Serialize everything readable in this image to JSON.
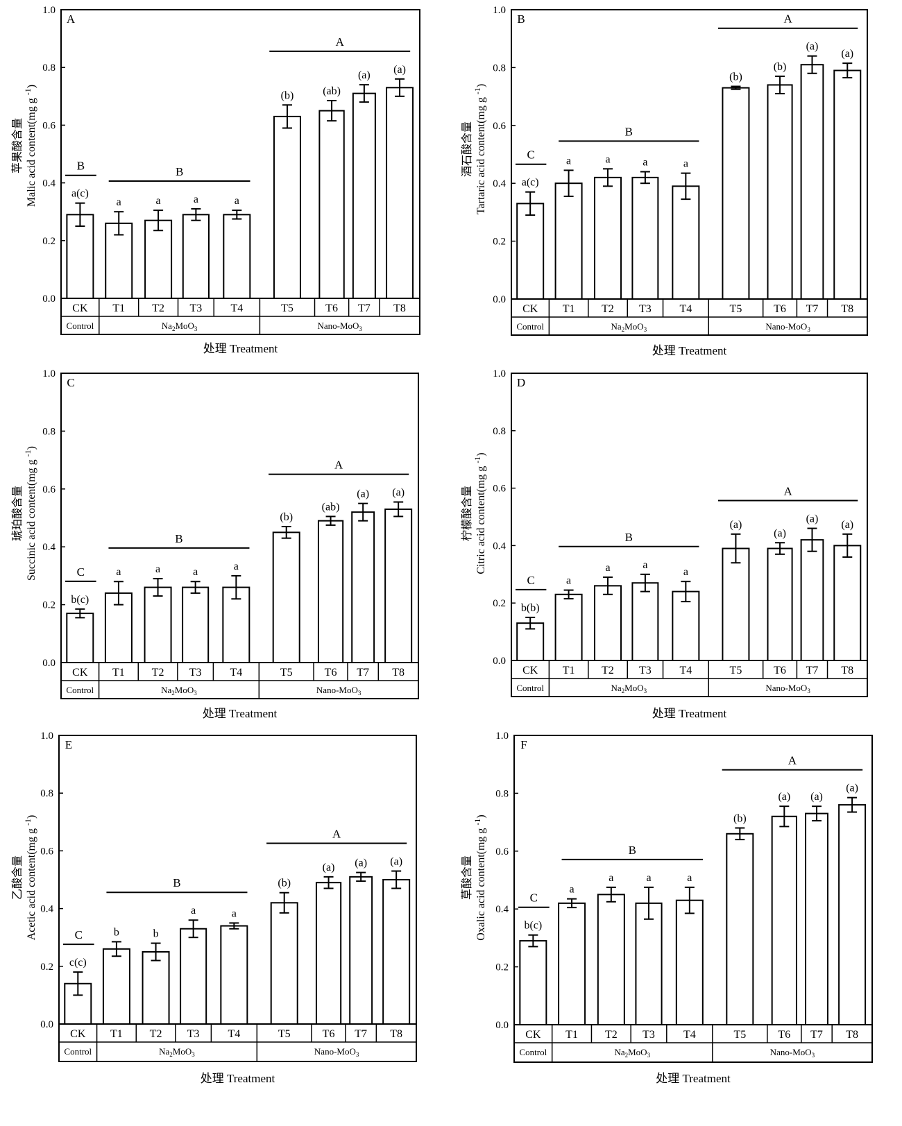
{
  "figure": {
    "x_title": "处理 Treatment",
    "treatments": [
      "CK",
      "T1",
      "T2",
      "T3",
      "T4",
      "T5",
      "T6",
      "T7",
      "T8"
    ],
    "groups": [
      {
        "label": "Control",
        "members": 1
      },
      {
        "label": "Na2MoO3",
        "members": 4
      },
      {
        "label": "Nano-MoO3",
        "members": 4
      }
    ],
    "group_label_parts": {
      "Na2MoO3": [
        "Na",
        "2",
        "MoO",
        "3"
      ],
      "Nano-MoO3": [
        "Nano-MoO",
        "3",
        ""
      ]
    },
    "bar_color": "#ffffff",
    "stroke_color": "#000000"
  },
  "chart_data": [
    {
      "type": "bar",
      "panel": "A",
      "ylabel_cn": "苹果酸含量",
      "ylabel_en": "Malic acid content(mg g",
      "ylabel_sup": "-1",
      ")": "",
      "ylim": [
        0,
        1.0
      ],
      "yticks": [
        "0.0",
        "0.2",
        "0.4",
        "0.6",
        "0.8",
        "1.0"
      ],
      "categories": [
        "CK",
        "T1",
        "T2",
        "T3",
        "T4",
        "T5",
        "T6",
        "T7",
        "T8"
      ],
      "values": [
        0.29,
        0.26,
        0.27,
        0.29,
        0.29,
        0.63,
        0.65,
        0.71,
        0.73
      ],
      "errors": [
        0.04,
        0.04,
        0.035,
        0.02,
        0.015,
        0.04,
        0.035,
        0.03,
        0.03
      ],
      "letters": [
        "a(c)",
        "a",
        "a",
        "a",
        "a",
        "(b)",
        "(ab)",
        "(a)",
        "(a)"
      ],
      "group_letters": [
        "B",
        "B",
        "A"
      ]
    },
    {
      "type": "bar",
      "panel": "B",
      "ylabel_cn": "酒石酸含量",
      "ylabel_en": "Tartaric acid content(mg g",
      "ylabel_sup": "-1",
      "ylim": [
        0,
        1.0
      ],
      "yticks": [
        "0.0",
        "0.2",
        "0.4",
        "0.6",
        "0.8",
        "1.0"
      ],
      "categories": [
        "CK",
        "T1",
        "T2",
        "T3",
        "T4",
        "T5",
        "T6",
        "T7",
        "T8"
      ],
      "values": [
        0.33,
        0.4,
        0.42,
        0.42,
        0.39,
        0.73,
        0.74,
        0.81,
        0.79
      ],
      "errors": [
        0.04,
        0.045,
        0.03,
        0.02,
        0.045,
        0.005,
        0.03,
        0.03,
        0.025
      ],
      "letters": [
        "a(c)",
        "a",
        "a",
        "a",
        "a",
        "(b)",
        "(b)",
        "(a)",
        "(a)"
      ],
      "group_letters": [
        "C",
        "B",
        "A"
      ]
    },
    {
      "type": "bar",
      "panel": "C",
      "ylabel_cn": "琥珀酸含量",
      "ylabel_en": "Succinic acid content(mg g",
      "ylabel_sup": "-1",
      "ylim": [
        0,
        1.0
      ],
      "yticks": [
        "0.0",
        "0.2",
        "0.4",
        "0.6",
        "0.8",
        "1.0"
      ],
      "categories": [
        "CK",
        "T1",
        "T2",
        "T3",
        "T4",
        "T5",
        "T6",
        "T7",
        "T8"
      ],
      "values": [
        0.17,
        0.24,
        0.26,
        0.26,
        0.26,
        0.45,
        0.49,
        0.52,
        0.53
      ],
      "errors": [
        0.015,
        0.04,
        0.03,
        0.02,
        0.04,
        0.02,
        0.015,
        0.03,
        0.025
      ],
      "letters": [
        "b(c)",
        "a",
        "a",
        "a",
        "a",
        "(b)",
        "(ab)",
        "(a)",
        "(a)"
      ],
      "group_letters": [
        "C",
        "B",
        "A"
      ]
    },
    {
      "type": "bar",
      "panel": "D",
      "ylabel_cn": "柠檬酸含量",
      "ylabel_en": "Citric acid content(mg g",
      "ylabel_sup": "-1",
      "ylim": [
        0,
        1.0
      ],
      "yticks": [
        "0.0",
        "0.2",
        "0.4",
        "0.6",
        "0.8",
        "1.0"
      ],
      "categories": [
        "CK",
        "T1",
        "T2",
        "T3",
        "T4",
        "T5",
        "T6",
        "T7",
        "T8"
      ],
      "values": [
        0.13,
        0.23,
        0.26,
        0.27,
        0.24,
        0.39,
        0.39,
        0.42,
        0.4
      ],
      "errors": [
        0.02,
        0.015,
        0.03,
        0.03,
        0.035,
        0.05,
        0.02,
        0.04,
        0.04
      ],
      "letters": [
        "b(b)",
        "a",
        "a",
        "a",
        "a",
        "(a)",
        "(a)",
        "(a)",
        "(a)"
      ],
      "group_letters": [
        "C",
        "B",
        "A"
      ]
    },
    {
      "type": "bar",
      "panel": "E",
      "ylabel_cn": "乙酸含量",
      "ylabel_en": "Acetic acid content(mg g",
      "ylabel_sup": "-1",
      "ylim": [
        0,
        1.0
      ],
      "yticks": [
        "0.0",
        "0.2",
        "0.4",
        "0.6",
        "0.8",
        "1.0"
      ],
      "categories": [
        "CK",
        "T1",
        "T2",
        "T3",
        "T4",
        "T5",
        "T6",
        "T7",
        "T8"
      ],
      "values": [
        0.14,
        0.26,
        0.25,
        0.33,
        0.34,
        0.42,
        0.49,
        0.51,
        0.5
      ],
      "errors": [
        0.04,
        0.025,
        0.03,
        0.03,
        0.01,
        0.035,
        0.02,
        0.015,
        0.03
      ],
      "letters": [
        "c(c)",
        "b",
        "b",
        "a",
        "a",
        "(b)",
        "(a)",
        "(a)",
        "(a)"
      ],
      "group_letters": [
        "C",
        "B",
        "A"
      ]
    },
    {
      "type": "bar",
      "panel": "F",
      "ylabel_cn": "草酸含量",
      "ylabel_en": "Oxalic acid content(mg g",
      "ylabel_sup": "-1",
      "ylim": [
        0,
        1.0
      ],
      "yticks": [
        "0.0",
        "0.2",
        "0.4",
        "0.6",
        "0.8",
        "1.0"
      ],
      "categories": [
        "CK",
        "T1",
        "T2",
        "T3",
        "T4",
        "T5",
        "T6",
        "T7",
        "T8"
      ],
      "values": [
        0.29,
        0.42,
        0.45,
        0.42,
        0.43,
        0.66,
        0.72,
        0.73,
        0.76
      ],
      "errors": [
        0.02,
        0.015,
        0.025,
        0.055,
        0.045,
        0.02,
        0.035,
        0.025,
        0.025
      ],
      "letters": [
        "b(c)",
        "a",
        "a",
        "a",
        "a",
        "(b)",
        "(a)",
        "(a)",
        "(a)"
      ],
      "group_letters": [
        "C",
        "B",
        "A"
      ]
    }
  ]
}
